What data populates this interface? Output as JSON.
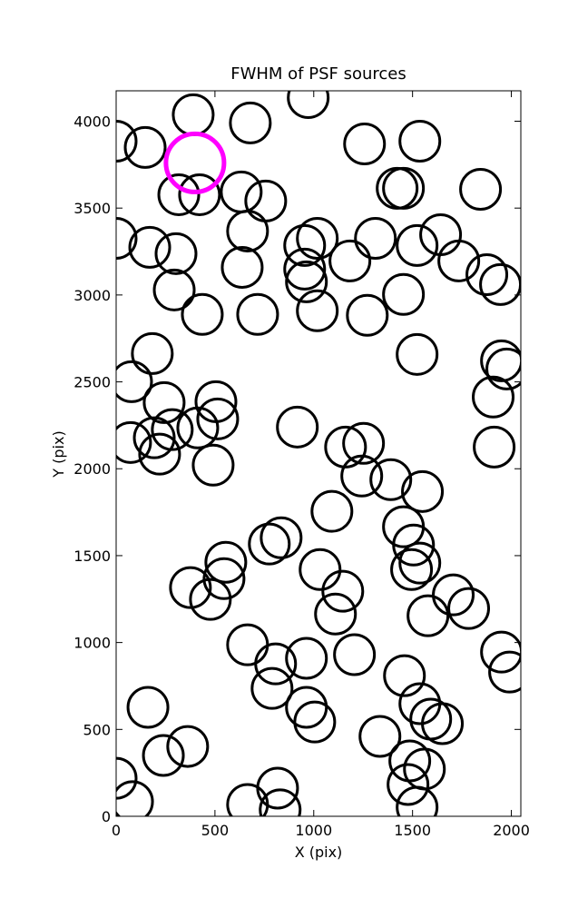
{
  "chart_data": {
    "type": "scatter",
    "title": "FWHM of PSF sources",
    "x_label": "X (pix)",
    "y_label": "Y (pix)",
    "xlim": [
      0,
      2048
    ],
    "ylim": [
      0,
      4175
    ],
    "xticks": [
      0,
      500,
      1000,
      1500,
      2000
    ],
    "yticks": [
      0,
      500,
      1000,
      1500,
      2000,
      2500,
      3000,
      3500,
      4000
    ],
    "series": [
      {
        "color": "#000000",
        "x": [
          0,
          147,
          390,
          679,
          972,
          1257,
          1537,
          1844,
          1422,
          1454,
          317,
          422,
          633,
          757,
          0,
          170,
          303,
          665,
          954,
          1018,
          1183,
          1312,
          1523,
          1642,
          1734,
          1876,
          1945,
          638,
          954,
          963,
          294,
          436,
          716,
          1018,
          1271,
          1454,
          1523,
          183,
          78,
          1950,
          1977,
          1908,
          243,
          505,
          514,
          284,
          193,
          220,
          73,
          413,
          491,
          917,
          1161,
          1252,
          1243,
          1390,
          1550,
          1913,
          1092,
          1454,
          1505,
          1537,
          1495,
          835,
          775,
          555,
          546,
          376,
          477,
          1032,
          1147,
          1110,
          1578,
          1706,
          1784,
          665,
          807,
          789,
          963,
          1206,
          1459,
          1537,
          1592,
          1651,
          1950,
          1991,
          963,
          1005,
          161,
          1335,
          1486,
          1560,
          1477,
          1523,
          239,
          362,
          0,
          83,
          665,
          817,
          830
        ],
        "y": [
          3885,
          3849,
          4037,
          3990,
          4136,
          3869,
          3885,
          3608,
          3614,
          3614,
          3577,
          3577,
          3593,
          3541,
          3326,
          3274,
          3238,
          3368,
          3285,
          3326,
          3196,
          3326,
          3285,
          3347,
          3196,
          3117,
          3060,
          3159,
          3149,
          3076,
          3029,
          2888,
          2888,
          2909,
          2883,
          3003,
          2658,
          2663,
          2501,
          2621,
          2574,
          2413,
          2381,
          2386,
          2287,
          2225,
          2178,
          2084,
          2151,
          2235,
          2021,
          2240,
          2125,
          2146,
          1958,
          1937,
          1869,
          2125,
          1755,
          1666,
          1561,
          1457,
          1420,
          1603,
          1567,
          1462,
          1368,
          1316,
          1248,
          1420,
          1295,
          1164,
          1154,
          1274,
          1196,
          987,
          877,
          736,
          909,
          930,
          809,
          648,
          559,
          533,
          945,
          830,
          627,
          543,
          627,
          460,
          319,
          272,
          183,
          52,
          350,
          402,
          219,
          84,
          68,
          162,
          37
        ]
      },
      {
        "color": "#ff00ff",
        "x": [
          399
        ],
        "y": [
          3760
        ]
      }
    ]
  }
}
